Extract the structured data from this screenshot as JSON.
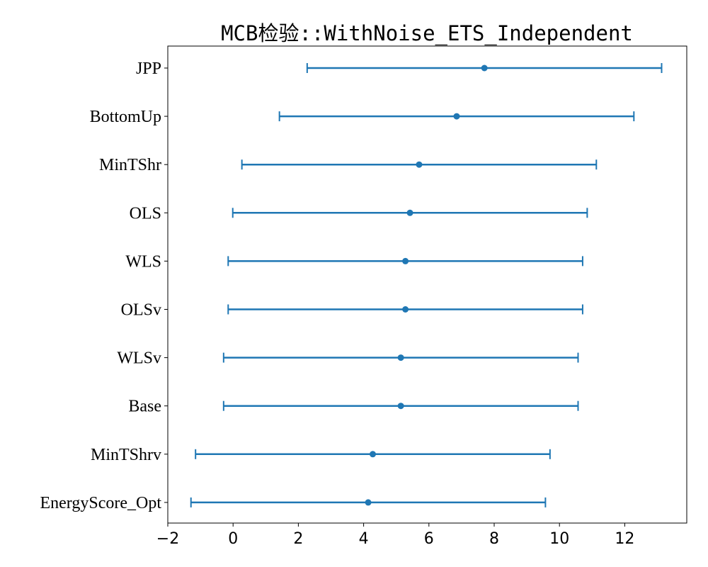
{
  "chart_data": {
    "type": "errorbar",
    "title": "MCB检验::WithNoise_ETS_Independent",
    "xlabel": "",
    "ylabel": "",
    "xlim": [
      -2.0,
      13.9
    ],
    "xticks": [
      -2,
      0,
      2,
      4,
      6,
      8,
      10,
      12
    ],
    "xtick_labels": [
      "−2",
      "0",
      "2",
      "4",
      "6",
      "8",
      "10",
      "12"
    ],
    "color": "#1f77b4",
    "grid": false,
    "categories": [
      "JPP",
      "BottomUp",
      "MinTShr",
      "OLS",
      "WLS",
      "OLSv",
      "WLSv",
      "Base",
      "MinTShrv",
      "EnergyScore_Opt"
    ],
    "values": [
      7.7,
      6.85,
      5.7,
      5.42,
      5.28,
      5.28,
      5.14,
      5.14,
      4.28,
      4.14
    ],
    "lower": [
      2.27,
      1.42,
      0.27,
      -0.01,
      -0.15,
      -0.15,
      -0.29,
      -0.29,
      -1.15,
      -1.29
    ],
    "upper": [
      13.13,
      12.28,
      11.13,
      10.85,
      10.71,
      10.71,
      10.57,
      10.57,
      9.71,
      9.57
    ]
  }
}
